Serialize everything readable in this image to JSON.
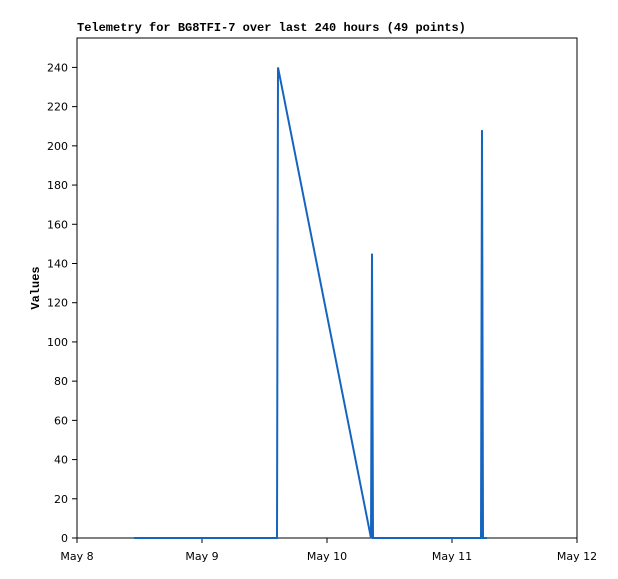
{
  "chart_data": {
    "type": "line",
    "title": "Telemetry for BG8TFI-7 over last 240 hours (49 points)",
    "y_label": "Values",
    "x": [
      0.456,
      1.6,
      1.608,
      2.352,
      2.36,
      2.368,
      3.232,
      3.24,
      3.248,
      3.28
    ],
    "series": [
      {
        "color": "#1565c0",
        "values": [
          0,
          0,
          240,
          0,
          145,
          0,
          0,
          208,
          0,
          0
        ]
      }
    ],
    "xlim": [
      0,
      4
    ],
    "xticks": [
      {
        "value": 0,
        "label": "May 8"
      },
      {
        "value": 1,
        "label": "May 9"
      },
      {
        "value": 2,
        "label": "May 10"
      },
      {
        "value": 3,
        "label": "May 11"
      },
      {
        "value": 4,
        "label": "May 12"
      }
    ],
    "ylim": [
      0,
      255
    ],
    "yticks": [
      0,
      20,
      40,
      60,
      80,
      100,
      120,
      140,
      160,
      180,
      200,
      220,
      240
    ]
  }
}
